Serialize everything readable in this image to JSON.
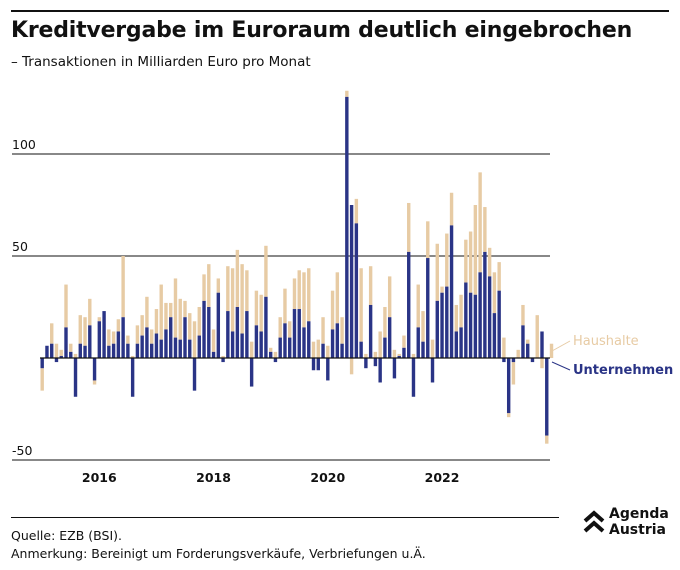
{
  "title": "Kreditvergabe im Euroraum deutlich eingebrochen",
  "subtitle": "– Transaktionen in Milliarden Euro pro Monat",
  "source": "Quelle: EZB (BSI).",
  "note": "Anmerkung: Bereinigt um Forderungsverkäufe, Verbriefungen u.Ä.",
  "logo": {
    "line1": "Agenda",
    "line2": "Austria"
  },
  "colors": {
    "haushalte": "#e7cba4",
    "unternehmen": "#2a3486",
    "grid": "#111111"
  },
  "chart_data": {
    "type": "bar",
    "stacked": true,
    "x_start": "2015-01",
    "frequency": "monthly",
    "x_tick_labels": [
      "2016",
      "2018",
      "2020",
      "2022"
    ],
    "y_ticks": [
      -50,
      50,
      100
    ],
    "ylim": [
      -52,
      130
    ],
    "series": [
      {
        "name": "Unternehmen",
        "values": [
          -5,
          6,
          7,
          -2,
          1,
          15,
          3,
          -19,
          7,
          6,
          16,
          -11,
          18,
          23,
          6,
          7,
          13,
          20,
          7,
          -19,
          7,
          11,
          15,
          7,
          12,
          9,
          14,
          20,
          10,
          9,
          20,
          9,
          -16,
          11,
          28,
          25,
          3,
          32,
          -2,
          23,
          13,
          25,
          12,
          23,
          -14,
          16,
          13,
          30,
          3,
          -2,
          10,
          17,
          10,
          24,
          24,
          15,
          18,
          -6,
          -6,
          7,
          -11,
          14,
          17,
          7,
          128,
          75,
          66,
          8,
          -5,
          26,
          -4,
          -12,
          10,
          20,
          -10,
          1,
          5,
          52,
          -19,
          15,
          8,
          49,
          -12,
          28,
          32,
          35,
          65,
          13,
          15,
          37,
          32,
          31,
          42,
          52,
          40,
          22,
          33,
          -2,
          -27,
          -2,
          0,
          16,
          7,
          -2,
          0,
          13,
          -38,
          0
        ]
      },
      {
        "name": "Haushalte",
        "values": [
          -11,
          0,
          10,
          7,
          3,
          21,
          4,
          2,
          14,
          14,
          13,
          -2,
          2,
          0,
          8,
          6,
          6,
          30,
          4,
          1,
          9,
          10,
          15,
          7,
          12,
          27,
          13,
          7,
          29,
          20,
          8,
          13,
          18,
          14,
          13,
          21,
          11,
          7,
          1,
          22,
          31,
          28,
          34,
          20,
          8,
          17,
          18,
          25,
          2,
          3,
          10,
          17,
          8,
          15,
          19,
          27,
          26,
          8,
          9,
          13,
          6,
          19,
          25,
          13,
          3,
          -8,
          12,
          36,
          2,
          19,
          3,
          13,
          15,
          20,
          4,
          1,
          6,
          24,
          2,
          21,
          15,
          18,
          9,
          28,
          3,
          26,
          16,
          13,
          16,
          21,
          30,
          44,
          49,
          22,
          14,
          20,
          14,
          10,
          -2,
          -11,
          4,
          10,
          2,
          0,
          21,
          -5,
          -4,
          7
        ]
      }
    ],
    "annotations": [
      "Haushalte",
      "Unternehmen"
    ]
  }
}
